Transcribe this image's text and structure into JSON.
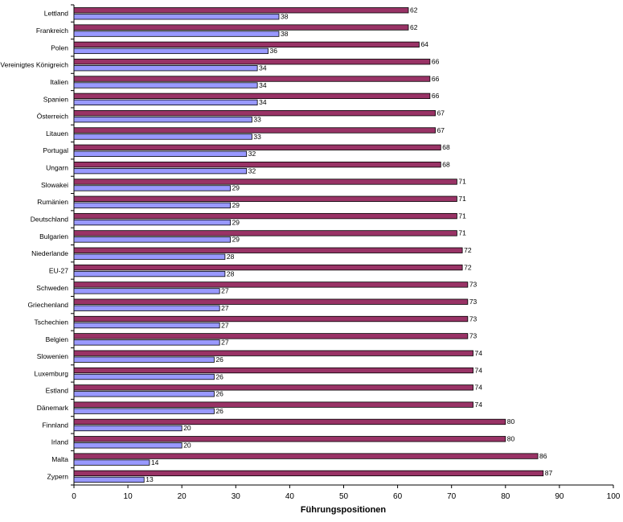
{
  "chart_data": {
    "type": "bar",
    "orientation": "horizontal",
    "categories": [
      "Lettland",
      "Frankreich",
      "Polen",
      "Vereinigtes Königreich",
      "Italien",
      "Spanien",
      "Österreich",
      "Litauen",
      "Portugal",
      "Ungarn",
      "Slowakei",
      "Rumänien",
      "Deutschland",
      "Bulgarien",
      "Niederlande",
      "EU-27",
      "Schweden",
      "Griechenland",
      "Tschechien",
      "Belgien",
      "Slowenien",
      "Luxemburg",
      "Estland",
      "Dänemark",
      "Finnland",
      "Irland",
      "Malta",
      "Zypern"
    ],
    "series": [
      {
        "values": [
          62,
          62,
          64,
          66,
          66,
          66,
          67,
          67,
          68,
          68,
          71,
          71,
          71,
          71,
          72,
          72,
          73,
          73,
          73,
          73,
          74,
          74,
          74,
          74,
          80,
          80,
          86,
          87
        ],
        "color": "#993366"
      },
      {
        "values": [
          38,
          38,
          36,
          34,
          34,
          34,
          33,
          33,
          32,
          32,
          29,
          29,
          29,
          29,
          28,
          28,
          27,
          27,
          27,
          27,
          26,
          26,
          26,
          26,
          20,
          20,
          14,
          13
        ],
        "color": "#9999ff"
      }
    ],
    "xlabel": "Führungspositionen",
    "ylabel": "",
    "xlim": [
      0,
      100
    ],
    "xticks": [
      "0",
      "10",
      "20",
      "30",
      "40",
      "50",
      "60",
      "70",
      "80",
      "90",
      "100"
    ],
    "grid": false,
    "legend": "none"
  }
}
